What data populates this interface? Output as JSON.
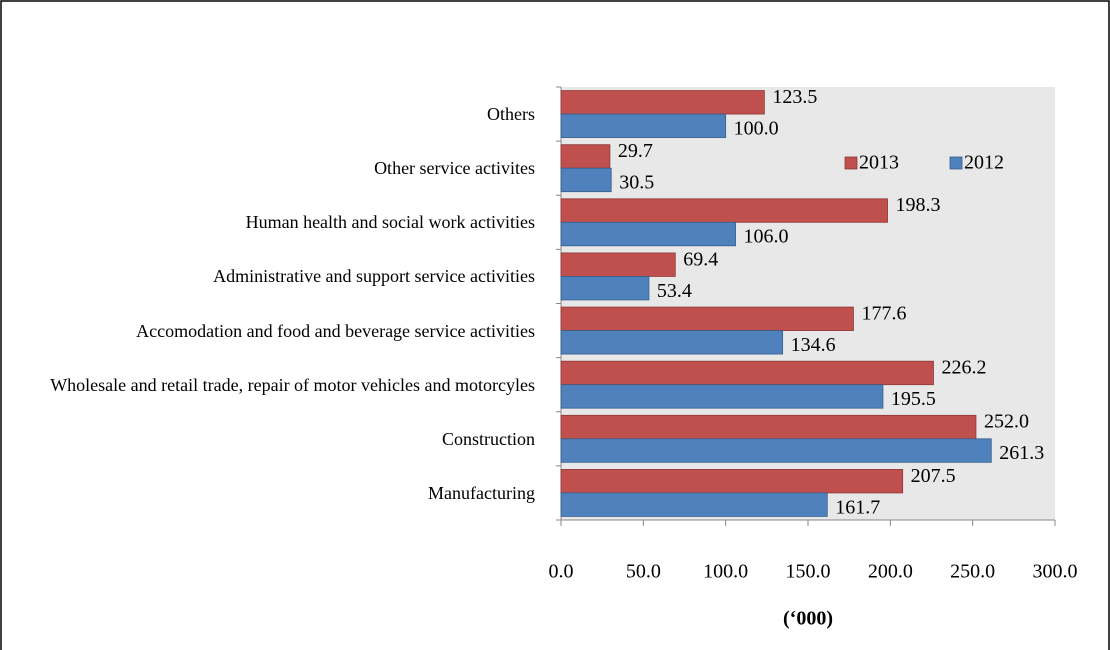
{
  "chart_data": {
    "type": "bar",
    "orientation": "horizontal",
    "categories": [
      "Manufacturing",
      "Construction",
      "Wholesale and retail trade, repair of motor vehicles and motorcyles",
      "Accomodation and food and beverage service activities",
      "Administrative and support service activities",
      "Human health and social work activities",
      "Other service activites",
      "Others"
    ],
    "series": [
      {
        "name": "2013",
        "color": "#c0504d",
        "values": [
          207.5,
          252.0,
          226.2,
          177.6,
          69.4,
          198.3,
          29.7,
          123.5
        ],
        "value_labels": [
          "207.5",
          "252.0",
          "226.2",
          "177.6",
          "69.4",
          "198.3",
          "29.7",
          "123.5"
        ]
      },
      {
        "name": "2012",
        "color": "#4f81bd",
        "values": [
          161.7,
          261.3,
          195.5,
          134.6,
          53.4,
          106.0,
          30.5,
          100.0
        ],
        "value_labels": [
          "161.7",
          "261.3",
          "195.5",
          "134.6",
          "53.4",
          "106.0",
          "30.5",
          "100.0"
        ]
      }
    ],
    "x_label": "(‘000)",
    "xlim": [
      0,
      300
    ],
    "xticks": [
      {
        "value": 0,
        "label": "0.0"
      },
      {
        "value": 50,
        "label": "50.0"
      },
      {
        "value": 100,
        "label": "100.0"
      },
      {
        "value": 150,
        "label": "150.0"
      },
      {
        "value": 200,
        "label": "200.0"
      },
      {
        "value": 250,
        "label": "250.0"
      },
      {
        "value": 300,
        "label": "300.0"
      }
    ],
    "grid": false,
    "legend": "upper-right",
    "plot_background": "#e8e8e8"
  }
}
